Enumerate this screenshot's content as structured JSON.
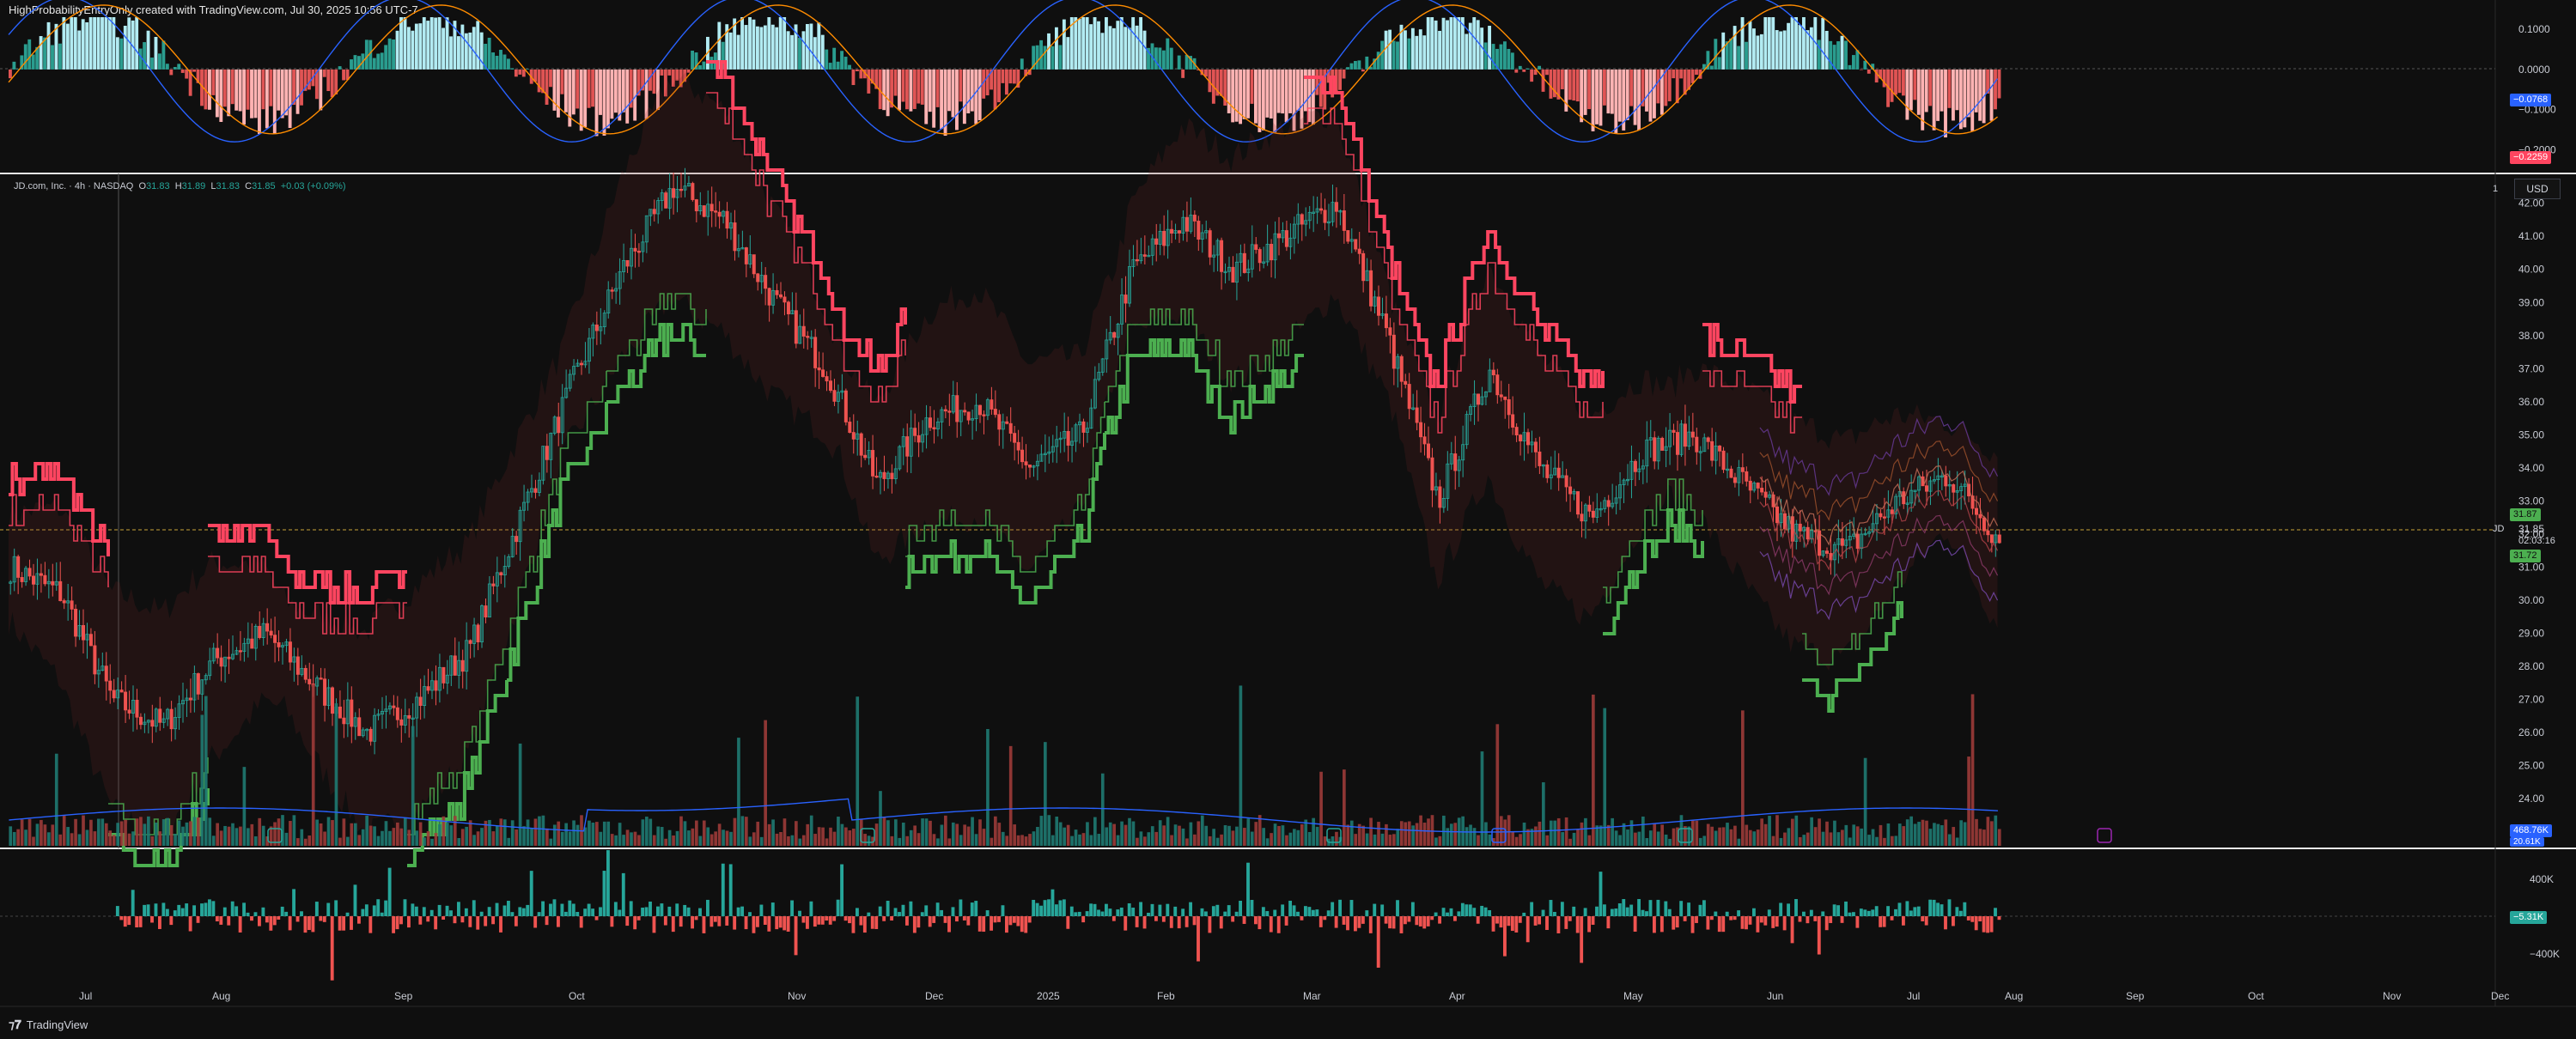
{
  "header": {
    "text": "HighProbabilityEntryOnly created with TradingView.com, Jul 30, 2025 10:56 UTC-7"
  },
  "legend": {
    "symbol": "JD.com, Inc. · 4h · NASDAQ",
    "o_label": "O",
    "o": "31.83",
    "h_label": "H",
    "h": "31.89",
    "l_label": "L",
    "l": "31.83",
    "c_label": "C",
    "c": "31.85",
    "change": "+0.03 (+0.09%)"
  },
  "currency": "USD",
  "marker_one": "1",
  "ticker_tag": "JD",
  "current_price": "31.85",
  "countdown": "02:03:16",
  "price_tags": {
    "upper_green": "31.87",
    "lower_green": "31.72"
  },
  "oscillator_tags": {
    "blue": "−0.0768",
    "red": "−0.2259"
  },
  "volume_tags": {
    "blue": "468.76K",
    "small": "20.61K"
  },
  "delta_tag": "−5.31K",
  "footer": {
    "logo": "TradingView"
  },
  "colors": {
    "background": "#0f0f0f",
    "up": "#26a69a",
    "down": "#ef5350",
    "bright_red": "#ff4560",
    "bright_green": "#4caf50",
    "blue": "#2962ff",
    "orange": "#ff8c00"
  },
  "chart_data": [
    {
      "name": "oscillator",
      "type": "bar",
      "y_ticks": [
        "0.1000",
        "0.0000",
        "−0.1000",
        "−0.2000"
      ],
      "ylim": [
        -0.25,
        0.13
      ],
      "current_values": {
        "blue_line": -0.0768,
        "red_line": -0.2259
      }
    },
    {
      "name": "price",
      "type": "candlestick",
      "symbol": "JD",
      "timeframe": "4h",
      "y_ticks": [
        "42.00",
        "41.00",
        "40.00",
        "39.00",
        "38.00",
        "37.00",
        "36.00",
        "35.00",
        "34.00",
        "33.00",
        "32.00",
        "31.00",
        "30.00",
        "29.00",
        "28.00",
        "27.00",
        "26.00",
        "25.00",
        "24.00",
        "23.00"
      ],
      "ylim": [
        22.5,
        42.9
      ],
      "x_ticks": [
        "Jul",
        "Aug",
        "Sep",
        "Oct",
        "Nov",
        "Dec",
        "2025",
        "Feb",
        "Mar",
        "Apr",
        "May",
        "Jun",
        "Jul",
        "Aug",
        "Sep",
        "Oct",
        "Nov",
        "Dec"
      ],
      "approx_closes": [
        31.0,
        30.2,
        27.0,
        26.2,
        28.2,
        29.0,
        27.4,
        26.0,
        27.0,
        28.5,
        32.5,
        36.5,
        40.0,
        42.5,
        41.5,
        39.0,
        37.0,
        33.5,
        35.5,
        36.0,
        34.0,
        35.0,
        40.0,
        41.5,
        40.0,
        41.0,
        42.0,
        38.0,
        33.0,
        37.0,
        34.0,
        32.5,
        34.5,
        35.0,
        33.5,
        32.0,
        31.5,
        33.0,
        33.8,
        31.85
      ],
      "last_ohlc": {
        "open": 31.83,
        "high": 31.89,
        "low": 31.83,
        "close": 31.85
      },
      "last_change": 0.03,
      "last_change_pct": 0.09
    },
    {
      "name": "volume",
      "type": "bar",
      "current_average": "468.76K"
    },
    {
      "name": "volume_delta",
      "type": "bar",
      "y_ticks": [
        "400K",
        "−400K"
      ],
      "current_value": "−5.31K"
    }
  ]
}
